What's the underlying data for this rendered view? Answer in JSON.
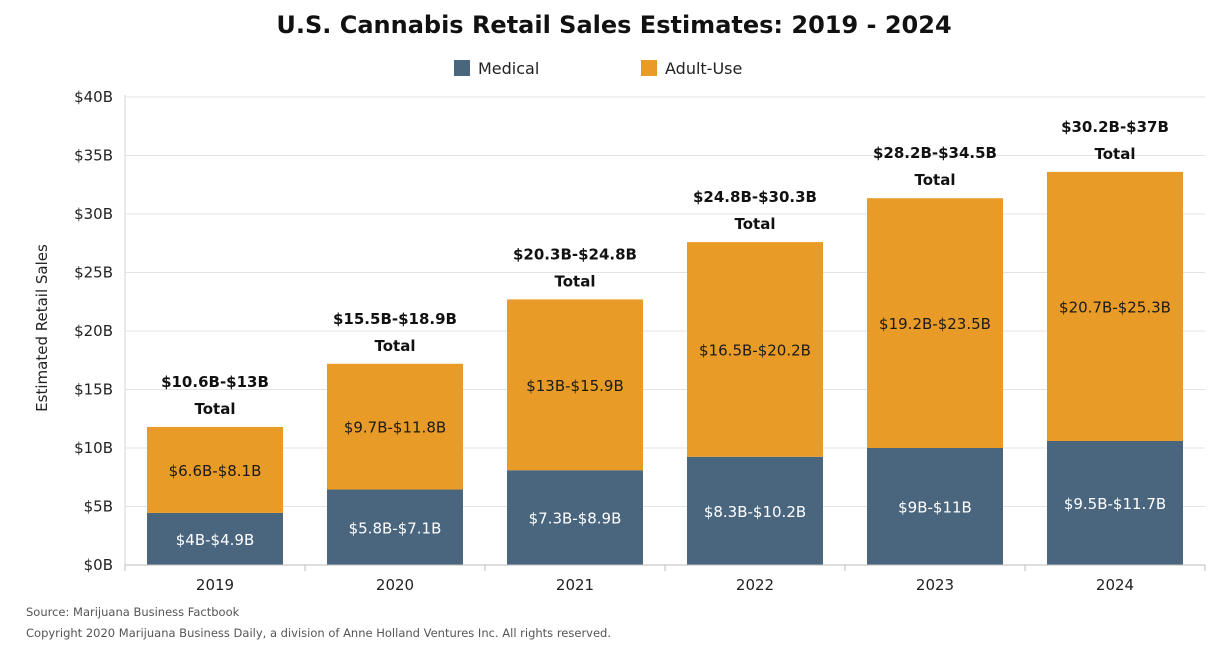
{
  "footer": {
    "source": "Source: Marijuana Business Factbook",
    "copyright": "Copyright 2020 Marijuana Business Daily, a division of Anne Holland Ventures Inc. All rights reserved."
  },
  "chart_data": {
    "type": "bar",
    "stacked": true,
    "title": "U.S. Cannabis Retail Sales Estimates: 2019 - 2024",
    "xlabel": "",
    "ylabel": "Estimated Retail Sales",
    "ylim": [
      0,
      40
    ],
    "yticks": [
      0,
      5,
      10,
      15,
      20,
      25,
      30,
      35,
      40
    ],
    "ytick_labels": [
      "$0B",
      "$5B",
      "$10B",
      "$15B",
      "$20B",
      "$25B",
      "$30B",
      "$35B",
      "$40B"
    ],
    "grid": true,
    "legend_position": "top-center",
    "categories": [
      "2019",
      "2020",
      "2021",
      "2022",
      "2023",
      "2024"
    ],
    "series": [
      {
        "name": "Medical",
        "color": "#4a657e",
        "values": [
          4.45,
          6.45,
          8.1,
          9.25,
          10.0,
          10.6
        ],
        "labels": [
          "$4B-$4.9B",
          "$5.8B-$7.1B",
          "$7.3B-$8.9B",
          "$8.3B-$10.2B",
          "$9B-$11B",
          "$9.5B-$11.7B"
        ]
      },
      {
        "name": "Adult-Use",
        "color": "#e89c27",
        "values": [
          7.35,
          10.75,
          14.6,
          18.35,
          21.35,
          23.0
        ],
        "labels": [
          "$6.6B-$8.1B",
          "$9.7B-$11.8B",
          "$13B-$15.9B",
          "$16.5B-$20.2B",
          "$19.2B-$23.5B",
          "$20.7B-$25.3B"
        ]
      }
    ],
    "totals": [
      {
        "range": "$10.6B-$13B",
        "label": "Total"
      },
      {
        "range": "$15.5B-$18.9B",
        "label": "Total"
      },
      {
        "range": "$20.3B-$24.8B",
        "label": "Total"
      },
      {
        "range": "$24.8B-$30.3B",
        "label": "Total"
      },
      {
        "range": "$28.2B-$34.5B",
        "label": "Total"
      },
      {
        "range": "$30.2B-$37B",
        "label": "Total"
      }
    ]
  }
}
